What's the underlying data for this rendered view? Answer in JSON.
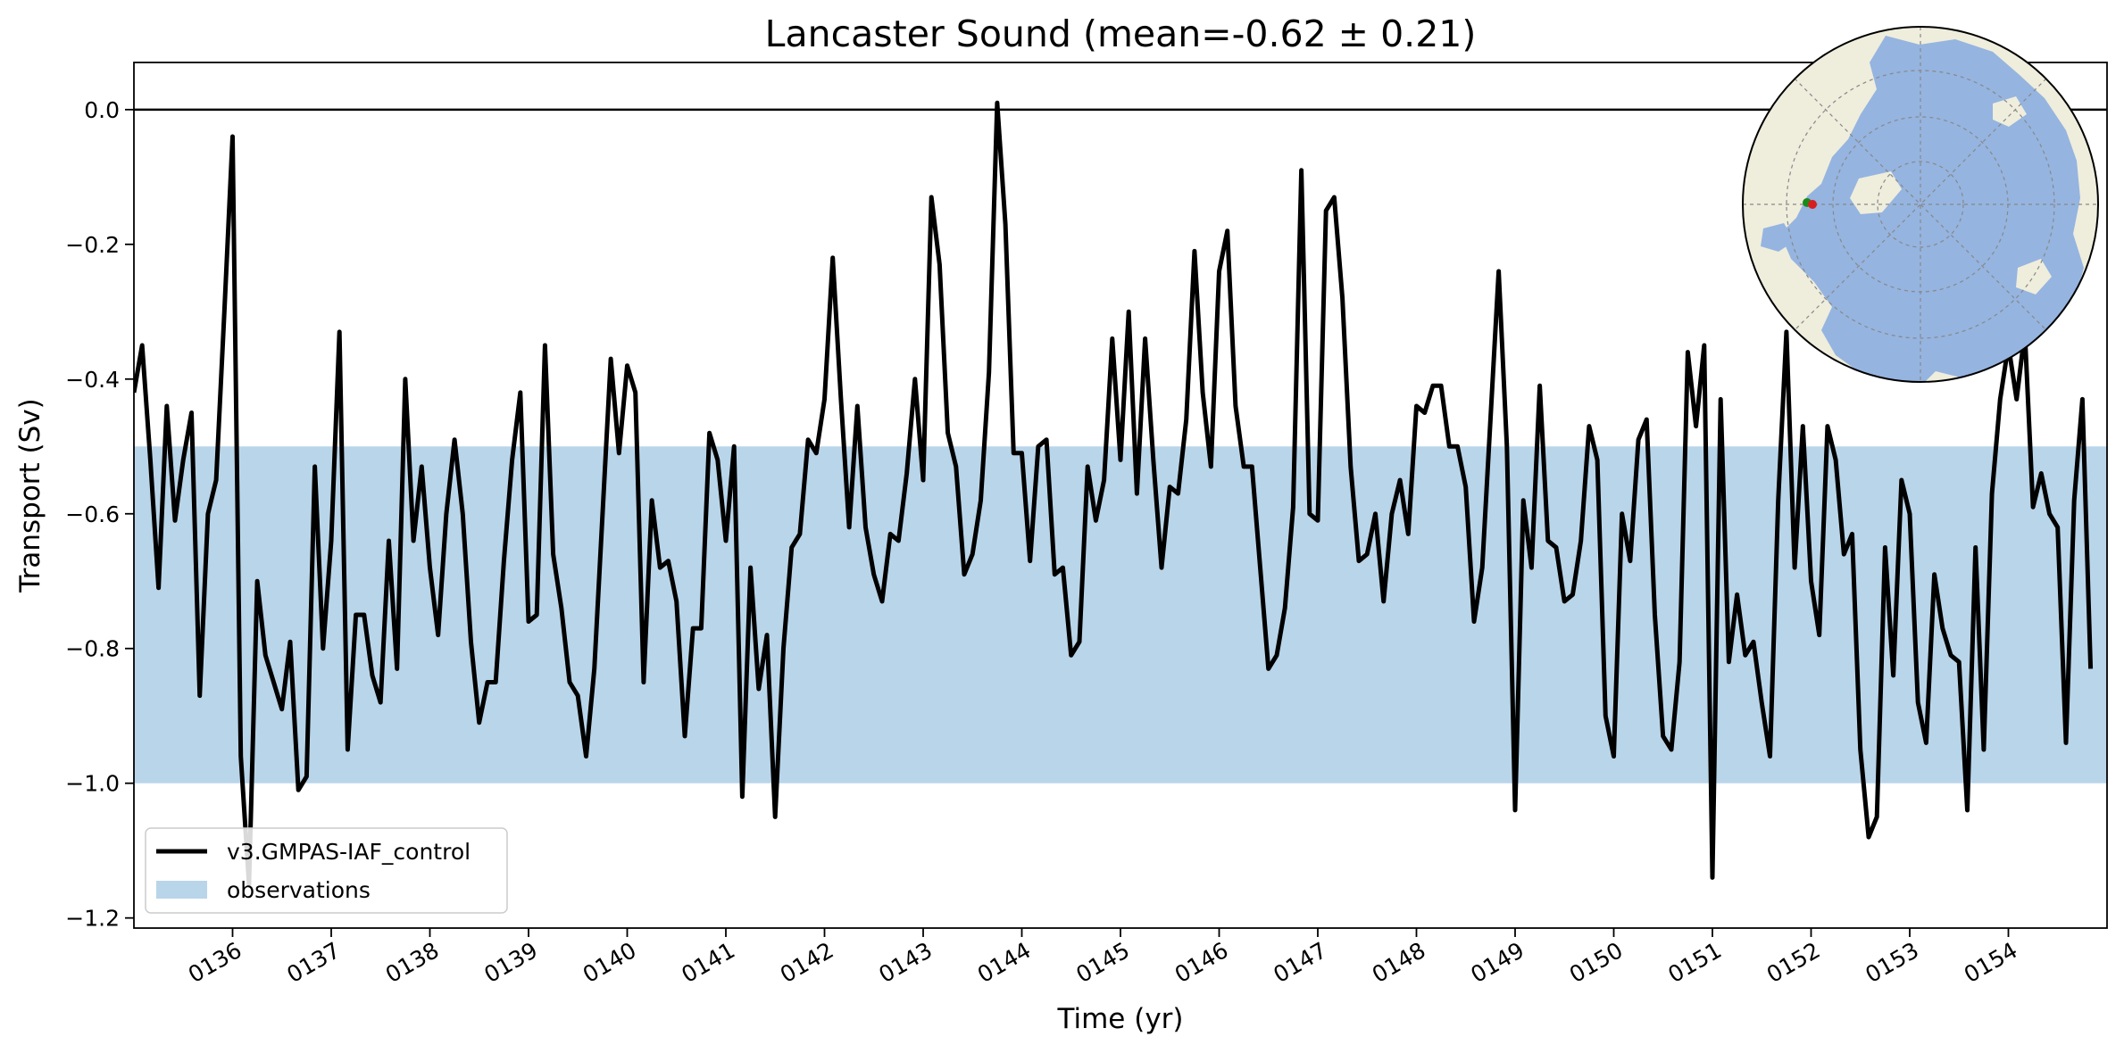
{
  "chart_data": {
    "type": "line",
    "title": "Lancaster Sound (mean=-0.62 ± 0.21)",
    "xlabel": "Time (yr)",
    "ylabel": "Transport (Sv)",
    "xlim": [
      135.0,
      155.0
    ],
    "ylim": [
      -1.215,
      0.07
    ],
    "grid": false,
    "legend_position": "lower-left",
    "x_ticks": [
      136,
      137,
      138,
      139,
      140,
      141,
      142,
      143,
      144,
      145,
      146,
      147,
      148,
      149,
      150,
      151,
      152,
      153,
      154
    ],
    "x_tick_labels": [
      "0136",
      "0137",
      "0138",
      "0139",
      "0140",
      "0141",
      "0142",
      "0143",
      "0144",
      "0145",
      "0146",
      "0147",
      "0148",
      "0149",
      "0150",
      "0151",
      "0152",
      "0153",
      "0154"
    ],
    "y_ticks": [
      0.0,
      -0.2,
      -0.4,
      -0.6,
      -0.8,
      -1.0,
      -1.2
    ],
    "y_tick_labels": [
      "0.0",
      "−0.2",
      "−0.4",
      "−0.6",
      "−0.8",
      "−1.0",
      "−1.2"
    ],
    "reference_line": 0.0,
    "observations_band": {
      "name": "observations",
      "ymin": -1.0,
      "ymax": -0.5,
      "color": "#b9d5e9"
    },
    "series": [
      {
        "name": "v3.GMPAS-IAF_control",
        "color": "#000000",
        "x_start": 135.0,
        "x_step": 0.0833333,
        "values": [
          -0.42,
          -0.35,
          -0.52,
          -0.71,
          -0.44,
          -0.61,
          -0.52,
          -0.45,
          -0.87,
          -0.6,
          -0.55,
          -0.3,
          -0.04,
          -0.96,
          -1.15,
          -0.7,
          -0.81,
          -0.85,
          -0.89,
          -0.79,
          -1.01,
          -0.99,
          -0.53,
          -0.8,
          -0.64,
          -0.33,
          -0.95,
          -0.75,
          -0.75,
          -0.84,
          -0.88,
          -0.64,
          -0.83,
          -0.4,
          -0.64,
          -0.53,
          -0.68,
          -0.78,
          -0.6,
          -0.49,
          -0.6,
          -0.79,
          -0.91,
          -0.85,
          -0.85,
          -0.67,
          -0.52,
          -0.42,
          -0.76,
          -0.75,
          -0.35,
          -0.66,
          -0.74,
          -0.85,
          -0.87,
          -0.96,
          -0.83,
          -0.6,
          -0.37,
          -0.51,
          -0.38,
          -0.42,
          -0.85,
          -0.58,
          -0.68,
          -0.67,
          -0.73,
          -0.93,
          -0.77,
          -0.77,
          -0.48,
          -0.52,
          -0.64,
          -0.5,
          -1.02,
          -0.68,
          -0.86,
          -0.78,
          -1.05,
          -0.8,
          -0.65,
          -0.63,
          -0.49,
          -0.51,
          -0.43,
          -0.22,
          -0.43,
          -0.62,
          -0.44,
          -0.62,
          -0.69,
          -0.73,
          -0.63,
          -0.64,
          -0.54,
          -0.4,
          -0.55,
          -0.13,
          -0.23,
          -0.48,
          -0.53,
          -0.69,
          -0.66,
          -0.58,
          -0.39,
          0.01,
          -0.17,
          -0.51,
          -0.51,
          -0.67,
          -0.5,
          -0.49,
          -0.69,
          -0.68,
          -0.81,
          -0.79,
          -0.53,
          -0.61,
          -0.55,
          -0.34,
          -0.52,
          -0.3,
          -0.57,
          -0.34,
          -0.52,
          -0.68,
          -0.56,
          -0.57,
          -0.46,
          -0.21,
          -0.42,
          -0.53,
          -0.24,
          -0.18,
          -0.44,
          -0.53,
          -0.53,
          -0.68,
          -0.83,
          -0.81,
          -0.74,
          -0.59,
          -0.09,
          -0.6,
          -0.61,
          -0.15,
          -0.13,
          -0.28,
          -0.53,
          -0.67,
          -0.66,
          -0.6,
          -0.73,
          -0.6,
          -0.55,
          -0.63,
          -0.44,
          -0.45,
          -0.41,
          -0.41,
          -0.5,
          -0.5,
          -0.56,
          -0.76,
          -0.68,
          -0.46,
          -0.24,
          -0.5,
          -1.04,
          -0.58,
          -0.68,
          -0.41,
          -0.64,
          -0.65,
          -0.73,
          -0.72,
          -0.64,
          -0.47,
          -0.52,
          -0.9,
          -0.96,
          -0.6,
          -0.67,
          -0.49,
          -0.46,
          -0.75,
          -0.93,
          -0.95,
          -0.82,
          -0.36,
          -0.47,
          -0.35,
          -1.14,
          -0.43,
          -0.82,
          -0.72,
          -0.81,
          -0.79,
          -0.88,
          -0.96,
          -0.58,
          -0.33,
          -0.68,
          -0.47,
          -0.7,
          -0.78,
          -0.47,
          -0.52,
          -0.66,
          -0.63,
          -0.95,
          -1.08,
          -1.05,
          -0.65,
          -0.84,
          -0.55,
          -0.6,
          -0.88,
          -0.94,
          -0.69,
          -0.77,
          -0.81,
          -0.82,
          -1.04,
          -0.65,
          -0.95,
          -0.57,
          -0.43,
          -0.35,
          -0.43,
          -0.33,
          -0.59,
          -0.54,
          -0.6,
          -0.62,
          -0.94,
          -0.58,
          -0.43,
          -0.83
        ]
      }
    ],
    "legend": [
      {
        "label": "v3.GMPAS-IAF_control",
        "kind": "line",
        "color": "#000000"
      },
      {
        "label": "observations",
        "kind": "patch",
        "color": "#b9d5e9"
      }
    ],
    "inset_map": {
      "projection": "north-polar-stereographic",
      "land_color": "#efeddc",
      "ocean_color": "#95b4e0",
      "markers": [
        {
          "label": "transect start",
          "color": "#1a8a1a"
        },
        {
          "label": "transect end",
          "color": "#d62020"
        }
      ]
    }
  }
}
